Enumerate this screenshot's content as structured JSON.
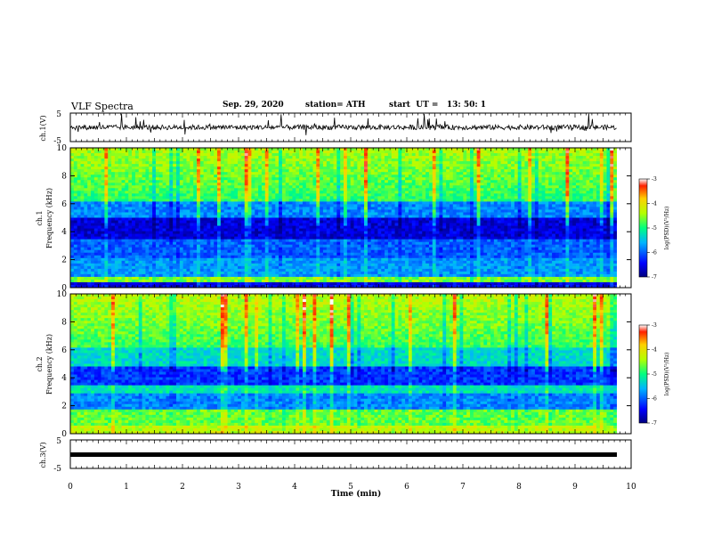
{
  "header": {
    "title": "VLF Spectra",
    "date": "Sep. 29, 2020",
    "station": "station= ATH",
    "start": "start  UT =   13: 50: 1"
  },
  "chart_data": [
    {
      "type": "line",
      "panel": "ch1-waveform",
      "ylabel": "ch.1(V)",
      "ylim": [
        -5,
        5
      ],
      "yticks": [
        "5",
        "-5"
      ],
      "xlim": [
        0,
        10
      ],
      "description_level": 0.0
    },
    {
      "type": "heatmap",
      "panel": "ch1-spectrogram",
      "ylabel_line1": "ch.1",
      "ylabel_line2": "Frequency  (kHz)",
      "ylim": [
        0,
        10
      ],
      "yticks": [
        "0",
        "2",
        "4",
        "6",
        "8",
        "10"
      ],
      "xlim": [
        0,
        10
      ],
      "colorbar": {
        "label": "log(PSD)(V²/Hz)",
        "min": -7,
        "max": -3,
        "ticks": [
          "-3",
          "-4",
          "-5",
          "-6",
          "-7"
        ]
      }
    },
    {
      "type": "heatmap",
      "panel": "ch2-spectrogram",
      "ylabel_line1": "ch.2",
      "ylabel_line2": "Frequency  (kHz)",
      "ylim": [
        0,
        10
      ],
      "yticks": [
        "0",
        "2",
        "4",
        "6",
        "8",
        "10"
      ],
      "xlim": [
        0,
        10
      ],
      "colorbar": {
        "label": "log(PSD)(V²/Hz)",
        "min": -7,
        "max": -3,
        "ticks": [
          "-3",
          "-4",
          "-5",
          "-6",
          "-7"
        ]
      }
    },
    {
      "type": "line",
      "panel": "ch3-waveform",
      "ylabel": "ch.3(V)",
      "ylim": [
        -5,
        5
      ],
      "yticks": [
        "5",
        "-5"
      ],
      "xlim": [
        0,
        10
      ],
      "xlabel": "Time  (min)",
      "xticks": [
        "0",
        "1",
        "2",
        "3",
        "4",
        "5",
        "6",
        "7",
        "8",
        "9",
        "10"
      ],
      "level": -1
    }
  ],
  "colors": {
    "colormap": [
      "#00007f",
      "#0000ff",
      "#00b4ff",
      "#00ff80",
      "#b4ff00",
      "#ffd000",
      "#ff2000",
      "#ffffff"
    ]
  }
}
